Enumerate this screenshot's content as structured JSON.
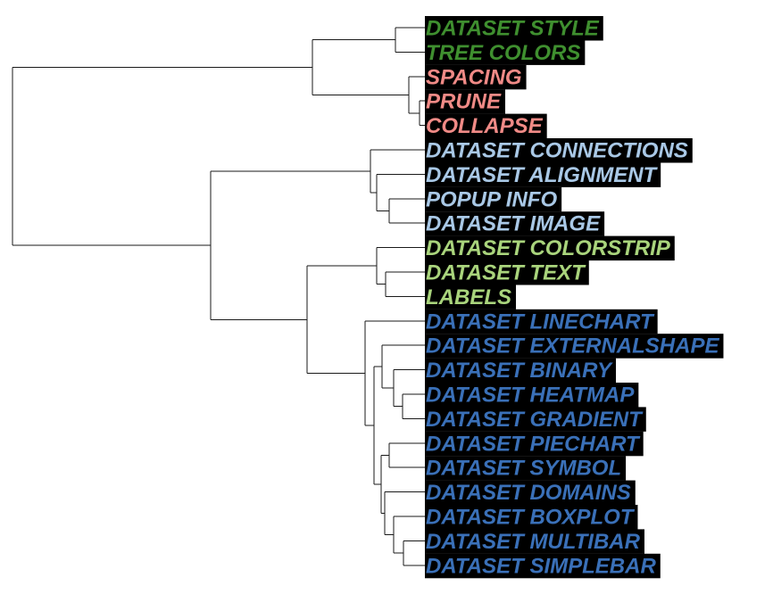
{
  "colors": {
    "dark_green": "#3f8f2f",
    "salmon": "#f08a86",
    "light_blue": "#a9c8e6",
    "light_green": "#a9d47c",
    "mid_blue": "#3a70b8",
    "label_background": "#000000",
    "branch": "#1a1a1a"
  },
  "leaves": [
    {
      "label": "DATASET STYLE",
      "color": "#3f8f2f"
    },
    {
      "label": "TREE COLORS",
      "color": "#3f8f2f"
    },
    {
      "label": "SPACING",
      "color": "#f08a86"
    },
    {
      "label": "PRUNE",
      "color": "#f08a86"
    },
    {
      "label": "COLLAPSE",
      "color": "#f08a86"
    },
    {
      "label": "DATASET CONNECTIONS",
      "color": "#a9c8e6"
    },
    {
      "label": "DATASET ALIGNMENT",
      "color": "#a9c8e6"
    },
    {
      "label": "POPUP INFO",
      "color": "#a9c8e6"
    },
    {
      "label": "DATASET IMAGE",
      "color": "#a9c8e6"
    },
    {
      "label": "DATASET COLORSTRIP",
      "color": "#a9d47c"
    },
    {
      "label": "DATASET TEXT",
      "color": "#a9d47c"
    },
    {
      "label": "LABELS",
      "color": "#a9d47c"
    },
    {
      "label": "DATASET LINECHART",
      "color": "#3a70b8"
    },
    {
      "label": "DATASET EXTERNALSHAPE",
      "color": "#3a70b8"
    },
    {
      "label": "DATASET BINARY",
      "color": "#3a70b8"
    },
    {
      "label": "DATASET HEATMAP",
      "color": "#3a70b8"
    },
    {
      "label": "DATASET GRADIENT",
      "color": "#3a70b8"
    },
    {
      "label": "DATASET PIECHART",
      "color": "#3a70b8"
    },
    {
      "label": "DATASET SYMBOL",
      "color": "#3a70b8"
    },
    {
      "label": "DATASET DOMAINS",
      "color": "#3a70b8"
    },
    {
      "label": "DATASET BOXPLOT",
      "color": "#3a70b8"
    },
    {
      "label": "DATASET MULTIBAR",
      "color": "#3a70b8"
    },
    {
      "label": "DATASET SIMPLEBAR",
      "color": "#3a70b8"
    }
  ]
}
